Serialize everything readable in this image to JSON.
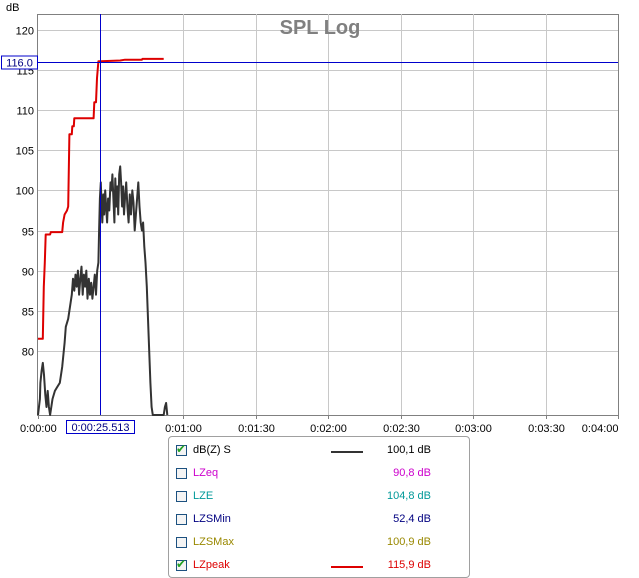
{
  "chart_data": {
    "type": "line",
    "title": "SPL Log",
    "ylabel": "dB",
    "xlabel": "",
    "ylim": [
      72,
      122
    ],
    "yticks": [
      80,
      85,
      90,
      95,
      100,
      105,
      110,
      115,
      120
    ],
    "xlim": [
      0,
      240
    ],
    "xticks": [
      {
        "t": 0,
        "label": "0:00:00"
      },
      {
        "t": 60,
        "label": "0:01:00"
      },
      {
        "t": 90,
        "label": "0:01:30"
      },
      {
        "t": 120,
        "label": "0:02:00"
      },
      {
        "t": 150,
        "label": "0:02:30"
      },
      {
        "t": 180,
        "label": "0:03:00"
      },
      {
        "t": 210,
        "label": "0:03:30"
      },
      {
        "t": 240,
        "label": "0:04:00"
      }
    ],
    "cursor": {
      "t": 25.5,
      "time_label": "0:00:25.513",
      "db": 116.0,
      "db_label": "116.0"
    },
    "series": [
      {
        "name": "dB(Z) S",
        "color": "#333333",
        "points": [
          [
            0,
            72
          ],
          [
            0.8,
            74
          ],
          [
            1,
            76
          ],
          [
            1.5,
            77.5
          ],
          [
            2,
            78.5
          ],
          [
            2.5,
            77
          ],
          [
            3,
            74.5
          ],
          [
            3.5,
            73
          ],
          [
            4,
            75
          ],
          [
            4.5,
            73
          ],
          [
            5,
            72
          ],
          [
            6,
            74
          ],
          [
            7,
            75
          ],
          [
            8,
            75.5
          ],
          [
            9,
            76
          ],
          [
            10,
            78
          ],
          [
            11,
            81
          ],
          [
            11.5,
            83
          ],
          [
            12,
            83.5
          ],
          [
            12.5,
            84
          ],
          [
            13,
            85
          ],
          [
            13.5,
            86
          ],
          [
            14,
            87
          ],
          [
            14.5,
            89
          ],
          [
            15,
            87.5
          ],
          [
            15.5,
            89.5
          ],
          [
            16,
            88
          ],
          [
            16.5,
            90
          ],
          [
            17,
            87
          ],
          [
            17.5,
            89
          ],
          [
            18,
            90.5
          ],
          [
            18.5,
            87
          ],
          [
            19,
            89.5
          ],
          [
            19.5,
            88
          ],
          [
            20,
            90
          ],
          [
            20.5,
            86.5
          ],
          [
            21,
            89
          ],
          [
            21.5,
            87
          ],
          [
            22,
            88.5
          ],
          [
            22.5,
            86.5
          ],
          [
            23,
            88
          ],
          [
            23.5,
            89.5
          ],
          [
            24,
            87
          ],
          [
            24.5,
            90
          ],
          [
            25,
            91
          ],
          [
            25.3,
            95
          ],
          [
            25.6,
            99
          ],
          [
            26,
            101
          ],
          [
            26.3,
            98
          ],
          [
            26.6,
            96
          ],
          [
            27,
            99.5
          ],
          [
            27.4,
            97
          ],
          [
            27.8,
            100
          ],
          [
            28.2,
            98
          ],
          [
            28.6,
            96
          ],
          [
            29,
            99
          ],
          [
            29.5,
            97.5
          ],
          [
            30,
            101
          ],
          [
            30.4,
            100
          ],
          [
            30.8,
            102
          ],
          [
            31.2,
            99
          ],
          [
            31.6,
            96
          ],
          [
            32,
            101.5
          ],
          [
            32.4,
            98
          ],
          [
            32.8,
            100.5
          ],
          [
            33.2,
            97
          ],
          [
            33.6,
            102
          ],
          [
            34,
            103
          ],
          [
            34.4,
            101
          ],
          [
            34.8,
            98
          ],
          [
            35.2,
            100.5
          ],
          [
            35.6,
            97
          ],
          [
            36,
            99
          ],
          [
            36.5,
            101
          ],
          [
            37,
            98
          ],
          [
            37.5,
            96
          ],
          [
            38,
            99.5
          ],
          [
            38.5,
            97
          ],
          [
            39,
            100
          ],
          [
            39.5,
            98.5
          ],
          [
            40,
            95
          ],
          [
            40.5,
            97
          ],
          [
            41,
            99
          ],
          [
            41.5,
            101
          ],
          [
            42,
            98
          ],
          [
            42.5,
            96
          ],
          [
            43,
            95
          ],
          [
            43.5,
            96
          ],
          [
            44,
            93
          ],
          [
            44.5,
            91
          ],
          [
            45,
            88
          ],
          [
            45.5,
            84
          ],
          [
            46,
            80
          ],
          [
            46.5,
            76
          ],
          [
            47,
            73
          ],
          [
            47.5,
            72
          ],
          [
            52,
            72
          ],
          [
            52.5,
            73
          ],
          [
            53,
            73.5
          ],
          [
            53.5,
            72
          ]
        ]
      },
      {
        "name": "LZpeak",
        "color": "#dd0000",
        "points": [
          [
            0,
            81.5
          ],
          [
            2,
            81.5
          ],
          [
            2.4,
            88
          ],
          [
            2.8,
            91
          ],
          [
            3.2,
            94.5
          ],
          [
            5,
            94.5
          ],
          [
            5.3,
            94.8
          ],
          [
            10,
            94.8
          ],
          [
            10.4,
            96
          ],
          [
            11,
            97
          ],
          [
            12,
            97.5
          ],
          [
            12.5,
            98
          ],
          [
            13,
            107
          ],
          [
            14,
            107
          ],
          [
            14.2,
            108
          ],
          [
            14.8,
            108
          ],
          [
            15,
            109
          ],
          [
            22,
            109
          ],
          [
            23,
            109
          ],
          [
            23.3,
            111
          ],
          [
            24,
            111
          ],
          [
            24.4,
            114
          ],
          [
            25,
            116.1
          ],
          [
            26,
            116.1
          ],
          [
            34,
            116.2
          ],
          [
            36,
            116.3
          ],
          [
            43,
            116.3
          ],
          [
            43.2,
            116.4
          ],
          [
            52,
            116.4
          ]
        ]
      }
    ],
    "legend": {
      "placement": "bottom",
      "entries": [
        {
          "name": "dB(Z) S",
          "checked": true,
          "color": "#333333",
          "value": "100,1 dB"
        },
        {
          "name": "LZeq",
          "checked": false,
          "color": "#cc00cc",
          "value": "90,8 dB"
        },
        {
          "name": "LZE",
          "checked": false,
          "color": "#009999",
          "value": "104,8 dB"
        },
        {
          "name": "LZSMin",
          "checked": false,
          "color": "#000080",
          "value": "52,4 dB"
        },
        {
          "name": "LZSMax",
          "checked": false,
          "color": "#998800",
          "value": "100,9 dB"
        },
        {
          "name": "LZpeak",
          "checked": true,
          "color": "#dd0000",
          "value": "115,9 dB"
        }
      ]
    }
  }
}
